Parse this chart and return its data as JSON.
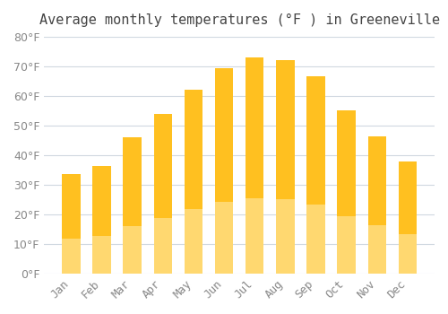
{
  "title": "Average monthly temperatures (°F ) in Greeneville",
  "months": [
    "Jan",
    "Feb",
    "Mar",
    "Apr",
    "May",
    "Jun",
    "Jul",
    "Aug",
    "Sep",
    "Oct",
    "Nov",
    "Dec"
  ],
  "values": [
    33.5,
    36.5,
    46.0,
    54.0,
    62.0,
    69.5,
    73.0,
    72.0,
    66.5,
    55.0,
    46.5,
    38.0
  ],
  "bar_color_top": "#FFC020",
  "bar_color_bottom": "#FFD870",
  "background_color": "#FFFFFF",
  "grid_color": "#D0D8E0",
  "tick_label_color": "#888888",
  "title_color": "#444444",
  "ylim": [
    0,
    80
  ],
  "ytick_step": 10,
  "title_fontsize": 11,
  "tick_fontsize": 9
}
